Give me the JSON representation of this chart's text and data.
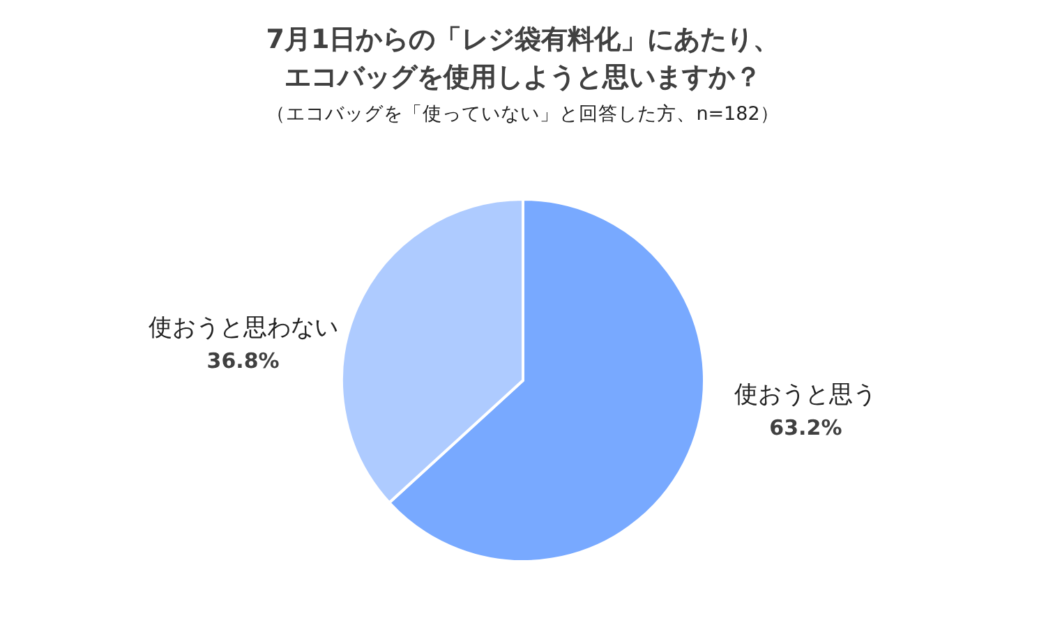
{
  "chart_data": {
    "type": "pie",
    "title": "7月1日からの「レジ袋有料化」にあたり、エコバッグを使用しようと思いますか？",
    "subtitle": "（エコバッグを「使っていない」と回答した方、n=182）",
    "categories": [
      "使おうと思う",
      "使おうと思わない"
    ],
    "values": [
      63.2,
      36.8
    ],
    "value_labels": [
      "63.2%",
      "36.8%"
    ],
    "colors": [
      "#78a9ff",
      "#aecbff"
    ],
    "legend": false
  }
}
